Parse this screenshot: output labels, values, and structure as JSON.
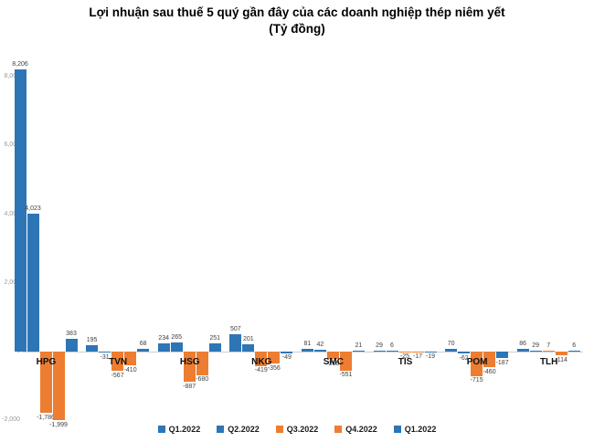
{
  "title": {
    "line1": "Lợi nhuận sau thuế 5 quý gần đây của các doanh nghiệp thép niêm yết",
    "line2": "(Tỷ đồng)"
  },
  "colors": {
    "blue": "#2E75B6",
    "orange": "#ED7D31",
    "axis": "#cfcfcf"
  },
  "chart_data": {
    "type": "bar",
    "title": "Lợi nhuận sau thuế 5 quý gần đây của các doanh nghiệp thép niêm yết",
    "subtitle": "(Tỷ đồng)",
    "unit": "Tỷ đồng",
    "categories": [
      "HPG",
      "TVN",
      "HSG",
      "NKG",
      "SMC",
      "TIS",
      "POM",
      "TLH"
    ],
    "series": [
      {
        "name": "Q1.2022",
        "color": "#2E75B6",
        "values": [
          8206,
          195,
          234,
          507,
          81,
          29,
          70,
          86
        ]
      },
      {
        "name": "Q2.2022",
        "color": "#2E75B6",
        "values": [
          4023,
          -31,
          265,
          201,
          42,
          6,
          -62,
          29
        ]
      },
      {
        "name": "Q3.2022",
        "color": "#ED7D31",
        "values": [
          -1786,
          -567,
          -887,
          -419,
          -219,
          -25,
          -715,
          7
        ]
      },
      {
        "name": "Q4.2022",
        "color": "#ED7D31",
        "values": [
          -1999,
          -410,
          -680,
          -356,
          -551,
          -17,
          -460,
          -114
        ]
      },
      {
        "name": "Q1.2022",
        "color": "#2E75B6",
        "values": [
          383,
          68,
          251,
          -49,
          21,
          -19,
          -187,
          6
        ]
      }
    ],
    "yticks": [
      8000,
      6000,
      4000,
      2000,
      0,
      -2000
    ],
    "ylim": [
      -2100,
      8500
    ],
    "grid": false,
    "legend_position": "bottom",
    "legend": [
      "Q1.2022",
      "Q2.2022",
      "Q3.2022",
      "Q4.2022",
      "Q1.2022"
    ]
  }
}
